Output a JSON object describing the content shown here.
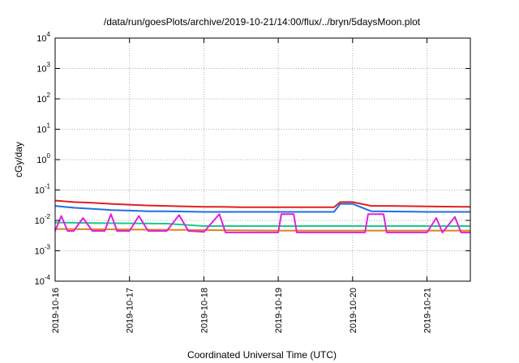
{
  "chart_data": {
    "type": "line",
    "title": "/data/run/goesPlots/archive/2019-10-21/14:00/flux/../bryn/5daysMoon.plot",
    "xlabel": "Coordinated Universal Time (UTC)",
    "ylabel": "cGy/day",
    "y_scale": "log",
    "ylim": [
      0.0001,
      10000
    ],
    "xlim": [
      "2019-10-16",
      "2019-10-21T14:00"
    ],
    "grid": true,
    "x_ticks": [
      "2019-10-16",
      "2019-10-17",
      "2019-10-18",
      "2019-10-19",
      "2019-10-20",
      "2019-10-21"
    ],
    "y_ticks": [
      {
        "value": 0.0001,
        "base": "10",
        "exp": "-4"
      },
      {
        "value": 0.001,
        "base": "10",
        "exp": "-3"
      },
      {
        "value": 0.01,
        "base": "10",
        "exp": "-2"
      },
      {
        "value": 0.1,
        "base": "10",
        "exp": "-1"
      },
      {
        "value": 1,
        "base": "10",
        "exp": "0"
      },
      {
        "value": 10,
        "base": "10",
        "exp": "1"
      },
      {
        "value": 100,
        "base": "10",
        "exp": "2"
      },
      {
        "value": 1000,
        "base": "10",
        "exp": "3"
      },
      {
        "value": 10000,
        "base": "10",
        "exp": "4"
      }
    ],
    "series": [
      {
        "color": "#e02020",
        "points": [
          [
            "2019-10-16T00:00",
            0.045
          ],
          [
            "2019-10-16T06:00",
            0.04
          ],
          [
            "2019-10-16T12:00",
            0.038
          ],
          [
            "2019-10-16T18:00",
            0.035
          ],
          [
            "2019-10-17T00:00",
            0.033
          ],
          [
            "2019-10-17T06:00",
            0.031
          ],
          [
            "2019-10-17T12:00",
            0.03
          ],
          [
            "2019-10-17T18:00",
            0.029
          ],
          [
            "2019-10-18T00:00",
            0.028
          ],
          [
            "2019-10-18T06:00",
            0.028
          ],
          [
            "2019-10-18T12:00",
            0.027
          ],
          [
            "2019-10-19T00:00",
            0.027
          ],
          [
            "2019-10-19T12:00",
            0.027
          ],
          [
            "2019-10-19T18:00",
            0.027
          ],
          [
            "2019-10-19T20:00",
            0.04
          ],
          [
            "2019-10-20T00:00",
            0.04
          ],
          [
            "2019-10-20T06:00",
            0.03
          ],
          [
            "2019-10-20T12:00",
            0.03
          ],
          [
            "2019-10-21T00:00",
            0.029
          ],
          [
            "2019-10-21T12:00",
            0.028
          ],
          [
            "2019-10-21T14:00",
            0.028
          ]
        ]
      },
      {
        "color": "#1f6fe0",
        "points": [
          [
            "2019-10-16T00:00",
            0.03
          ],
          [
            "2019-10-16T06:00",
            0.026
          ],
          [
            "2019-10-16T12:00",
            0.024
          ],
          [
            "2019-10-16T18:00",
            0.022
          ],
          [
            "2019-10-17T00:00",
            0.021
          ],
          [
            "2019-10-17T06:00",
            0.02
          ],
          [
            "2019-10-17T12:00",
            0.02
          ],
          [
            "2019-10-18T00:00",
            0.019
          ],
          [
            "2019-10-18T12:00",
            0.019
          ],
          [
            "2019-10-19T00:00",
            0.019
          ],
          [
            "2019-10-19T12:00",
            0.019
          ],
          [
            "2019-10-19T18:00",
            0.019
          ],
          [
            "2019-10-19T20:00",
            0.035
          ],
          [
            "2019-10-20T00:00",
            0.035
          ],
          [
            "2019-10-20T06:00",
            0.02
          ],
          [
            "2019-10-21T00:00",
            0.019
          ],
          [
            "2019-10-21T14:00",
            0.019
          ]
        ]
      },
      {
        "color": "#18c890",
        "points": [
          [
            "2019-10-16T00:00",
            0.0085
          ],
          [
            "2019-10-16T12:00",
            0.0082
          ],
          [
            "2019-10-17T00:00",
            0.008
          ],
          [
            "2019-10-17T12:00",
            0.0078
          ],
          [
            "2019-10-18T00:00",
            0.0065
          ],
          [
            "2019-10-18T12:00",
            0.0065
          ],
          [
            "2019-10-19T00:00",
            0.0065
          ],
          [
            "2019-10-19T12:00",
            0.0065
          ],
          [
            "2019-10-20T00:00",
            0.0065
          ],
          [
            "2019-10-20T12:00",
            0.0065
          ],
          [
            "2019-10-21T00:00",
            0.0065
          ],
          [
            "2019-10-21T14:00",
            0.0065
          ]
        ]
      },
      {
        "color": "#e08020",
        "points": [
          [
            "2019-10-16T00:00",
            0.0052
          ],
          [
            "2019-10-17T00:00",
            0.005
          ],
          [
            "2019-10-18T00:00",
            0.0048
          ],
          [
            "2019-10-19T00:00",
            0.0046
          ],
          [
            "2019-10-20T00:00",
            0.0046
          ],
          [
            "2019-10-21T00:00",
            0.0046
          ],
          [
            "2019-10-21T14:00",
            0.0046
          ]
        ]
      },
      {
        "color": "#e020e0",
        "points": [
          [
            "2019-10-16T00:00",
            0.0045
          ],
          [
            "2019-10-16T02:00",
            0.014
          ],
          [
            "2019-10-16T04:00",
            0.0045
          ],
          [
            "2019-10-16T06:00",
            0.0045
          ],
          [
            "2019-10-16T09:00",
            0.012
          ],
          [
            "2019-10-16T12:00",
            0.0045
          ],
          [
            "2019-10-16T16:00",
            0.0045
          ],
          [
            "2019-10-16T18:00",
            0.016
          ],
          [
            "2019-10-16T20:00",
            0.0045
          ],
          [
            "2019-10-17T00:00",
            0.0045
          ],
          [
            "2019-10-17T03:00",
            0.014
          ],
          [
            "2019-10-17T06:00",
            0.0045
          ],
          [
            "2019-10-17T12:00",
            0.0045
          ],
          [
            "2019-10-17T16:00",
            0.015
          ],
          [
            "2019-10-17T19:00",
            0.0045
          ],
          [
            "2019-10-18T00:00",
            0.0042
          ],
          [
            "2019-10-18T05:00",
            0.016
          ],
          [
            "2019-10-18T07:00",
            0.004
          ],
          [
            "2019-10-18T12:00",
            0.004
          ],
          [
            "2019-10-19T00:00",
            0.004
          ],
          [
            "2019-10-19T01:00",
            0.016
          ],
          [
            "2019-10-19T05:00",
            0.016
          ],
          [
            "2019-10-19T06:00",
            0.004
          ],
          [
            "2019-10-19T12:00",
            0.004
          ],
          [
            "2019-10-20T00:00",
            0.004
          ],
          [
            "2019-10-20T04:00",
            0.004
          ],
          [
            "2019-10-20T05:00",
            0.016
          ],
          [
            "2019-10-20T10:00",
            0.016
          ],
          [
            "2019-10-20T11:00",
            0.004
          ],
          [
            "2019-10-20T20:00",
            0.004
          ],
          [
            "2019-10-21T00:00",
            0.004
          ],
          [
            "2019-10-21T03:00",
            0.012
          ],
          [
            "2019-10-21T05:00",
            0.004
          ],
          [
            "2019-10-21T09:00",
            0.013
          ],
          [
            "2019-10-21T11:00",
            0.004
          ],
          [
            "2019-10-21T14:00",
            0.004
          ]
        ]
      }
    ]
  }
}
